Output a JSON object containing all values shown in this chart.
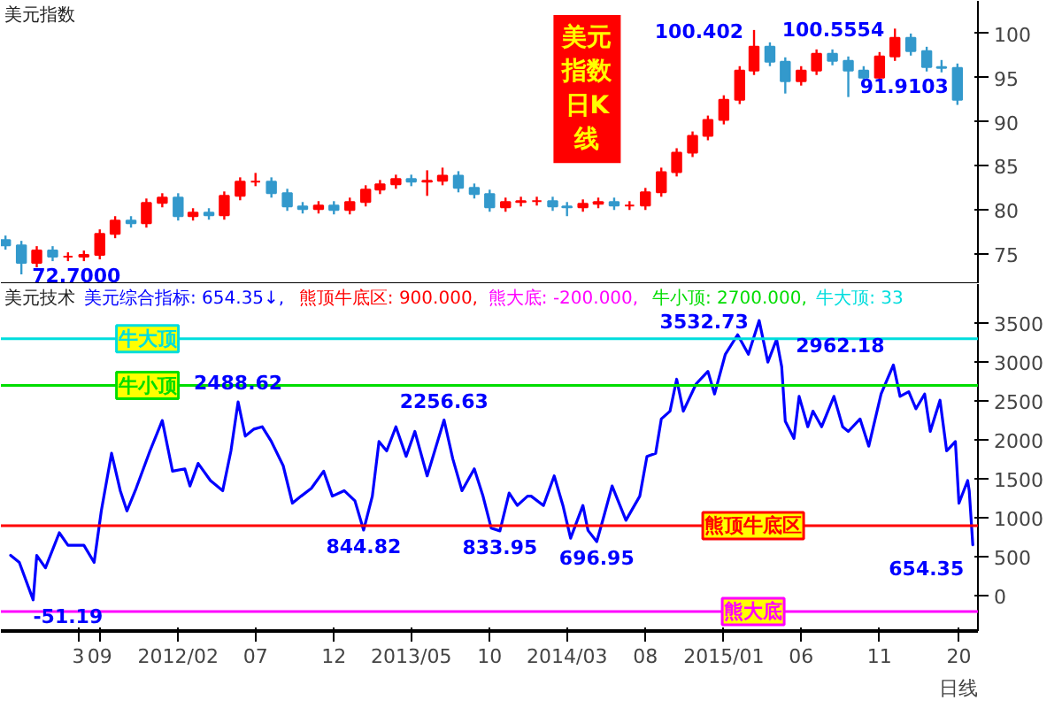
{
  "chart_data": [
    {
      "type": "candlestick",
      "title": "美元指数",
      "subtitle": "美元指数日K线",
      "xlim": [
        "2011-02-20",
        "2016-05-11"
      ],
      "ylim": [
        71.6,
        103.7
      ],
      "yticks": [
        75,
        80,
        85,
        90,
        95,
        100
      ],
      "tick_labels": "y",
      "x": [
        "2011-03",
        "2011-04",
        "2011-05",
        "2011-06",
        "2011-07",
        "2011-08",
        "2011-09",
        "2011-10",
        "2011-11",
        "2011-12",
        "2012-01",
        "2012-02",
        "2012-03",
        "2012-04",
        "2012-05",
        "2012-06",
        "2012-07",
        "2012-08",
        "2012-09",
        "2012-10",
        "2012-11",
        "2012-12",
        "2013-01",
        "2013-02",
        "2013-03",
        "2013-04",
        "2013-05",
        "2013-06",
        "2013-07",
        "2013-08",
        "2013-09",
        "2013-10",
        "2013-11",
        "2013-12",
        "2014-01",
        "2014-02",
        "2014-03",
        "2014-04",
        "2014-05",
        "2014-06",
        "2014-07",
        "2014-08",
        "2014-09",
        "2014-10",
        "2014-11",
        "2014-12",
        "2015-01",
        "2015-02",
        "2015-03",
        "2015-04",
        "2015-05",
        "2015-06",
        "2015-07",
        "2015-08",
        "2015-09",
        "2015-10",
        "2015-11",
        "2015-12",
        "2016-01",
        "2016-02",
        "2016-03",
        "2016-04"
      ],
      "ohlc": [
        [
          76.6,
          77.1,
          75.5,
          76.0
        ],
        [
          76.0,
          76.5,
          72.7,
          74.0
        ],
        [
          74.0,
          75.9,
          73.5,
          75.4
        ],
        [
          75.4,
          75.9,
          74.2,
          74.7
        ],
        [
          74.7,
          75.2,
          74.2,
          74.7
        ],
        [
          74.7,
          75.4,
          74.2,
          74.9
        ],
        [
          74.9,
          77.8,
          74.4,
          77.3
        ],
        [
          77.3,
          79.3,
          76.8,
          78.8
        ],
        [
          78.8,
          79.3,
          78.0,
          78.5
        ],
        [
          78.5,
          81.3,
          78.0,
          80.8
        ],
        [
          80.8,
          81.9,
          80.3,
          81.4
        ],
        [
          81.4,
          81.9,
          78.8,
          79.3
        ],
        [
          79.3,
          80.2,
          78.8,
          79.7
        ],
        [
          79.7,
          80.2,
          78.9,
          79.4
        ],
        [
          79.4,
          82.1,
          78.9,
          81.6
        ],
        [
          81.6,
          83.7,
          81.1,
          83.2
        ],
        [
          83.2,
          84.2,
          82.7,
          83.2
        ],
        [
          83.2,
          83.7,
          81.4,
          81.9
        ],
        [
          81.9,
          82.4,
          79.9,
          80.4
        ],
        [
          80.4,
          80.9,
          79.6,
          80.1
        ],
        [
          80.1,
          81.0,
          79.6,
          80.5
        ],
        [
          80.5,
          81.0,
          79.5,
          80.0
        ],
        [
          80.0,
          81.4,
          79.5,
          80.9
        ],
        [
          80.9,
          82.8,
          80.4,
          82.3
        ],
        [
          82.3,
          83.4,
          81.8,
          82.9
        ],
        [
          82.9,
          84.0,
          82.4,
          83.5
        ],
        [
          83.5,
          84.0,
          82.7,
          83.2
        ],
        [
          83.2,
          84.5,
          81.6,
          83.3
        ],
        [
          83.3,
          84.8,
          82.8,
          83.9
        ],
        [
          83.9,
          84.4,
          82.0,
          82.5
        ],
        [
          82.5,
          83.0,
          81.3,
          81.8
        ],
        [
          81.8,
          82.3,
          79.8,
          80.3
        ],
        [
          80.3,
          81.4,
          79.8,
          80.9
        ],
        [
          80.9,
          81.5,
          80.4,
          81.0
        ],
        [
          81.0,
          81.5,
          80.5,
          81.0
        ],
        [
          81.0,
          81.5,
          79.9,
          80.4
        ],
        [
          80.4,
          80.9,
          79.3,
          80.3
        ],
        [
          80.3,
          81.2,
          79.8,
          80.7
        ],
        [
          80.7,
          81.4,
          80.2,
          80.9
        ],
        [
          80.9,
          81.4,
          80.0,
          80.5
        ],
        [
          80.5,
          81.0,
          80.0,
          80.5
        ],
        [
          80.5,
          82.5,
          80.0,
          82.0
        ],
        [
          82.0,
          84.8,
          81.5,
          84.3
        ],
        [
          84.3,
          87.0,
          83.8,
          86.5
        ],
        [
          86.5,
          88.9,
          86.0,
          88.4
        ],
        [
          88.4,
          90.7,
          87.9,
          90.2
        ],
        [
          90.2,
          93.0,
          89.7,
          92.5
        ],
        [
          92.5,
          96.3,
          92.0,
          95.8
        ],
        [
          95.8,
          100.402,
          95.3,
          98.5
        ],
        [
          98.5,
          99.0,
          96.3,
          96.8
        ],
        [
          96.8,
          97.3,
          93.2,
          94.6
        ],
        [
          94.6,
          96.3,
          94.1,
          95.8
        ],
        [
          95.8,
          98.2,
          95.3,
          97.7
        ],
        [
          97.7,
          98.2,
          96.4,
          96.9
        ],
        [
          96.9,
          97.4,
          92.8,
          95.8
        ],
        [
          95.8,
          96.3,
          94.5,
          95.0
        ],
        [
          95.0,
          97.9,
          94.5,
          97.4
        ],
        [
          97.4,
          100.5554,
          96.9,
          99.5
        ],
        [
          99.5,
          100.0,
          97.5,
          98.0
        ],
        [
          98.0,
          98.5,
          95.7,
          96.2
        ],
        [
          96.2,
          97.0,
          95.6,
          96.1
        ],
        [
          96.1,
          96.6,
          91.9103,
          92.5
        ]
      ],
      "colors": [
        "#3399cc",
        "#3399cc",
        "#ff0000",
        "#3399cc",
        "#ff0000",
        "#ff0000",
        "#ff0000",
        "#ff0000",
        "#3399cc",
        "#ff0000",
        "#ff0000",
        "#3399cc",
        "#ff0000",
        "#3399cc",
        "#ff0000",
        "#ff0000",
        "#ff0000",
        "#3399cc",
        "#3399cc",
        "#3399cc",
        "#ff0000",
        "#3399cc",
        "#ff0000",
        "#ff0000",
        "#ff0000",
        "#ff0000",
        "#3399cc",
        "#ff0000",
        "#ff0000",
        "#3399cc",
        "#3399cc",
        "#3399cc",
        "#ff0000",
        "#ff0000",
        "#ff0000",
        "#3399cc",
        "#3399cc",
        "#ff0000",
        "#ff0000",
        "#3399cc",
        "#ff0000",
        "#ff0000",
        "#ff0000",
        "#ff0000",
        "#ff0000",
        "#ff0000",
        "#ff0000",
        "#ff0000",
        "#ff0000",
        "#3399cc",
        "#3399cc",
        "#ff0000",
        "#ff0000",
        "#3399cc",
        "#3399cc",
        "#3399cc",
        "#ff0000",
        "#ff0000",
        "#3399cc",
        "#3399cc",
        "#3399cc",
        "#3399cc"
      ],
      "annotations": [
        {
          "text": "72.7000",
          "x": "2011-04",
          "y": 72.7
        },
        {
          "text": "100.402",
          "x": "2015-03",
          "y": 100.402
        },
        {
          "text": "100.5554",
          "x": "2015-12",
          "y": 100.5554
        },
        {
          "text": "91.9103",
          "x": "2016-04",
          "y": 91.9103
        }
      ]
    },
    {
      "type": "line",
      "title": "美元技术",
      "xlabel": "日线",
      "xlim": [
        "2011-02-20",
        "2016-05-11"
      ],
      "ylim": [
        -450,
        4000
      ],
      "yticks": [
        0,
        500,
        1000,
        1500,
        2000,
        2500,
        3000,
        3500
      ],
      "xticks": [
        {
          "value": "2011-07-21",
          "label": "3"
        },
        {
          "value": "2011-09-01",
          "label": "09"
        },
        {
          "value": "2012-02-01",
          "label": "2012/02"
        },
        {
          "value": "2012-07-01",
          "label": "07"
        },
        {
          "value": "2012-12-01",
          "label": "12"
        },
        {
          "value": "2013-05-01",
          "label": "2013/05"
        },
        {
          "value": "2013-10-01",
          "label": "10"
        },
        {
          "value": "2014-03-01",
          "label": "2014/03"
        },
        {
          "value": "2014-08-01",
          "label": "08"
        },
        {
          "value": "2015-01-01",
          "label": "2015/01"
        },
        {
          "value": "2015-06-01",
          "label": "06"
        },
        {
          "value": "2015-11-01",
          "label": "11"
        },
        {
          "value": "2016-04-04",
          "label": "20"
        }
      ],
      "series": [
        {
          "color": "#0000ff",
          "x": [
            "2011-03-11",
            "2011-03-28",
            "2011-04-24",
            "2011-05-01",
            "2011-05-18",
            "2011-06-14",
            "2011-07-01",
            "2011-08-01",
            "2011-08-21",
            "2011-09-04",
            "2011-09-24",
            "2011-10-11",
            "2011-10-24",
            "2011-11-11",
            "2011-12-08",
            "2012-01-01",
            "2012-01-21",
            "2012-02-14",
            "2012-02-24",
            "2012-03-11",
            "2012-04-04",
            "2012-04-28",
            "2012-05-14",
            "2012-05-28",
            "2012-06-11",
            "2012-06-28",
            "2012-07-14",
            "2012-08-01",
            "2012-08-24",
            "2012-09-11",
            "2012-09-28",
            "2012-10-18",
            "2012-11-11",
            "2012-11-28",
            "2012-12-21",
            "2013-01-11",
            "2013-01-28",
            "2013-02-14",
            "2013-02-27",
            "2013-03-14",
            "2013-04-01",
            "2013-04-21",
            "2013-05-08",
            "2013-06-01",
            "2013-07-04",
            "2013-07-21",
            "2013-08-08",
            "2013-09-01",
            "2013-09-18",
            "2013-10-04",
            "2013-10-21",
            "2013-11-08",
            "2013-11-24",
            "2013-12-14",
            "2013-12-21",
            "2014-01-14",
            "2014-02-04",
            "2014-02-21",
            "2014-03-08",
            "2014-04-01",
            "2014-04-11",
            "2014-04-28",
            "2014-05-11",
            "2014-05-28",
            "2014-06-24",
            "2014-07-21",
            "2014-08-04",
            "2014-08-21",
            "2014-09-01",
            "2014-09-18",
            "2014-10-01",
            "2014-10-14",
            "2014-11-08",
            "2014-12-01",
            "2014-12-14",
            "2015-01-04",
            "2015-01-28",
            "2015-02-18",
            "2015-03-11",
            "2015-03-28",
            "2015-04-14",
            "2015-04-24",
            "2015-05-01",
            "2015-05-18",
            "2015-05-28",
            "2015-06-14",
            "2015-06-24",
            "2015-07-11",
            "2015-08-04",
            "2015-08-21",
            "2015-09-01",
            "2015-09-24",
            "2015-10-11",
            "2015-11-04",
            "2015-11-28",
            "2015-12-11",
            "2015-12-28",
            "2016-01-11",
            "2016-01-28",
            "2016-02-08",
            "2016-02-27",
            "2016-03-11",
            "2016-03-28",
            "2016-04-04",
            "2016-04-21",
            "2016-04-24",
            "2016-05-01"
          ],
          "values": [
            520,
            430,
            -51.19,
            520,
            360,
            810,
            650,
            650,
            430,
            1090,
            1830,
            1350,
            1090,
            1380,
            1860,
            2250,
            1600,
            1630,
            1410,
            1700,
            1480,
            1350,
            1860,
            2488.62,
            2050,
            2140,
            2170,
            1980,
            1670,
            1190,
            1280,
            1380,
            1600,
            1280,
            1350,
            1220,
            844.82,
            1280,
            1980,
            1860,
            2170,
            1790,
            2110,
            1540,
            2256.63,
            1760,
            1350,
            1630,
            1280,
            870,
            833.95,
            1320,
            1160,
            1280,
            1280,
            1160,
            1540,
            1160,
            740,
            1160,
            840,
            696.95,
            1000,
            1410,
            970,
            1280,
            1790,
            1830,
            2270,
            2370,
            2780,
            2370,
            2720,
            2880,
            2590,
            3100,
            3350,
            3100,
            3532.73,
            3000,
            3290,
            2940,
            2240,
            2020,
            2560,
            2170,
            2370,
            2170,
            2560,
            2170,
            2110,
            2270,
            1920,
            2590,
            2962.18,
            2560,
            2620,
            2400,
            2590,
            2110,
            2510,
            1860,
            1980,
            1190,
            1480,
            1350,
            654.35
          ]
        }
      ],
      "ref_lines": [
        {
          "axis": "y",
          "value": 900,
          "label": "熊顶牛底区",
          "color": "#ff0000"
        },
        {
          "axis": "y",
          "value": -200,
          "label": "熊大底",
          "color": "#ff00ff"
        },
        {
          "axis": "y",
          "value": 2700,
          "label": "牛小顶",
          "color": "#00dd00"
        },
        {
          "axis": "y",
          "value": 3300,
          "label": "牛大顶",
          "color": "#00dddd"
        }
      ],
      "annotations": [
        "美元综合指标: 654.35↓,",
        "熊顶牛底区: 900.000,",
        "熊大底: -200.000,",
        "牛小顶: 2700.000,",
        "牛大顶: 33",
        {
          "text": "-51.19",
          "x": "2011-04-24",
          "y": -51.19
        },
        {
          "text": "2488.62",
          "x": "2012-05-28",
          "y": 2488.62
        },
        {
          "text": "844.82",
          "x": "2013-01-28",
          "y": 844.82
        },
        {
          "text": "2256.63",
          "x": "2013-07-04",
          "y": 2256.63
        },
        {
          "text": "833.95",
          "x": "2013-10-21",
          "y": 833.95
        },
        {
          "text": "696.95",
          "x": "2014-04-28",
          "y": 696.95
        },
        {
          "text": "3532.73",
          "x": "2015-03-11",
          "y": 3532.73
        },
        {
          "text": "2962.18",
          "x": "2015-11-28",
          "y": 2962.18
        },
        {
          "text": "654.35",
          "x": "2016-05-01",
          "y": 654.35
        }
      ]
    }
  ]
}
